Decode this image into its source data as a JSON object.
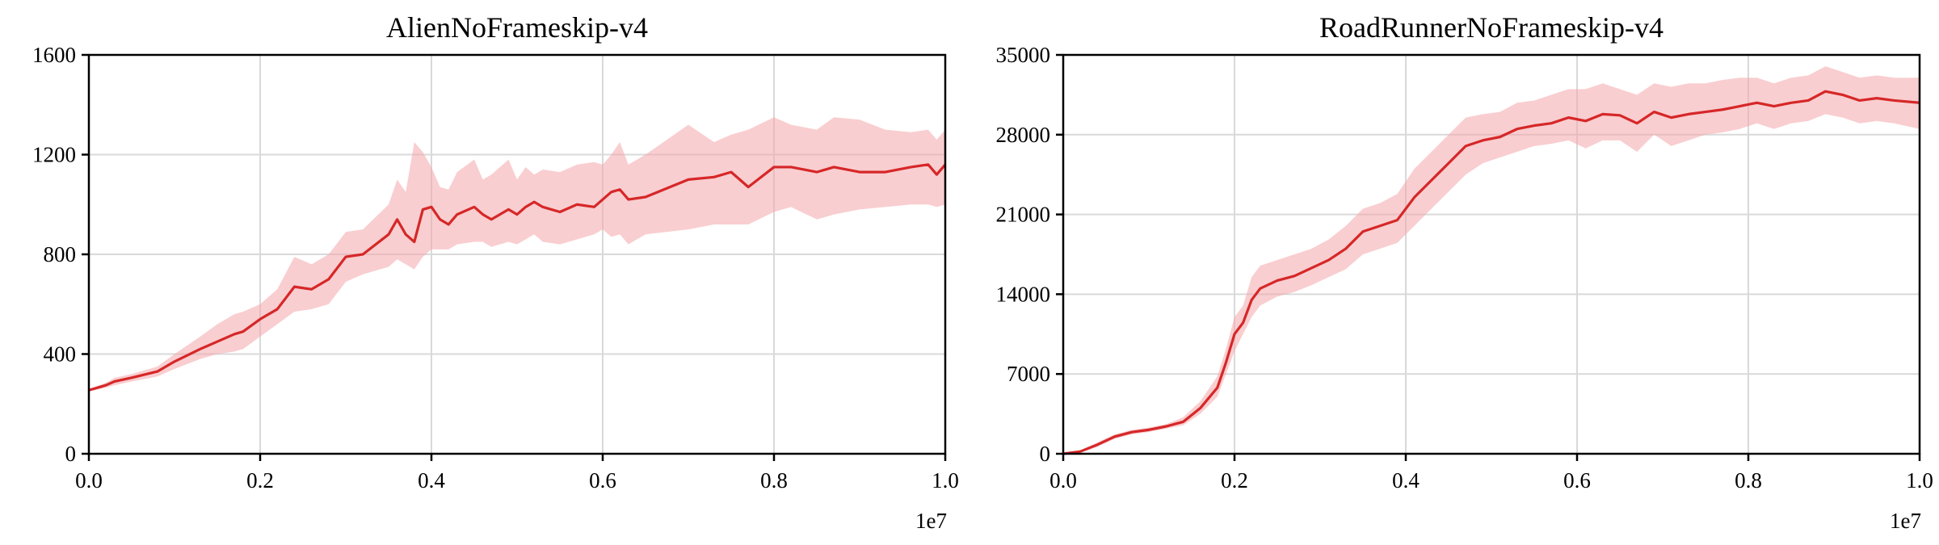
{
  "colors": {
    "line": "#d62728",
    "band": "#f4a6a9"
  },
  "chart_data": [
    {
      "type": "line",
      "title": "AlienNoFrameskip-v4",
      "xlabel": "",
      "ylabel": "",
      "x_offset_label": "1e7",
      "xlim": [
        0,
        10000000
      ],
      "ylim": [
        0,
        1600
      ],
      "xticks": [
        0,
        2000000,
        4000000,
        6000000,
        8000000,
        10000000
      ],
      "xtick_labels": [
        "0.0",
        "0.2",
        "0.4",
        "0.6",
        "0.8",
        "1.0"
      ],
      "yticks": [
        0,
        400,
        800,
        1200,
        1600
      ],
      "ytick_labels": [
        "0",
        "400",
        "800",
        "1200",
        "1600"
      ],
      "grid": true,
      "series": [
        {
          "x": [
            0,
            200000,
            300000,
            500000,
            800000,
            1000000,
            1300000,
            1500000,
            1700000,
            1800000,
            2000000,
            2200000,
            2400000,
            2600000,
            2800000,
            3000000,
            3200000,
            3500000,
            3600000,
            3700000,
            3800000,
            3900000,
            4000000,
            4100000,
            4200000,
            4300000,
            4500000,
            4600000,
            4700000,
            4900000,
            5000000,
            5100000,
            5200000,
            5300000,
            5500000,
            5700000,
            5900000,
            6000000,
            6100000,
            6200000,
            6300000,
            6500000,
            7000000,
            7300000,
            7500000,
            7700000,
            8000000,
            8200000,
            8500000,
            8700000,
            9000000,
            9300000,
            9600000,
            9800000,
            9900000,
            10000000
          ],
          "y": [
            255,
            275,
            290,
            305,
            330,
            370,
            420,
            450,
            480,
            490,
            540,
            580,
            670,
            660,
            700,
            790,
            800,
            880,
            940,
            880,
            850,
            980,
            990,
            940,
            920,
            960,
            990,
            960,
            940,
            980,
            960,
            990,
            1010,
            990,
            970,
            1000,
            990,
            1020,
            1050,
            1060,
            1020,
            1030,
            1100,
            1110,
            1130,
            1070,
            1150,
            1150,
            1130,
            1150,
            1130,
            1130,
            1150,
            1160,
            1120,
            1160
          ],
          "lower": [
            250,
            265,
            275,
            290,
            310,
            340,
            380,
            400,
            410,
            420,
            470,
            520,
            570,
            580,
            600,
            690,
            720,
            750,
            780,
            760,
            740,
            790,
            820,
            820,
            820,
            840,
            850,
            850,
            830,
            850,
            840,
            860,
            880,
            850,
            840,
            860,
            880,
            900,
            870,
            880,
            840,
            880,
            900,
            920,
            920,
            920,
            970,
            990,
            940,
            960,
            980,
            990,
            1000,
            1000,
            990,
            1000
          ],
          "upper": [
            260,
            285,
            305,
            320,
            350,
            400,
            470,
            520,
            560,
            570,
            600,
            660,
            790,
            760,
            800,
            890,
            900,
            1000,
            1100,
            1050,
            1250,
            1210,
            1150,
            1070,
            1060,
            1130,
            1180,
            1100,
            1120,
            1180,
            1100,
            1150,
            1120,
            1140,
            1130,
            1160,
            1170,
            1160,
            1200,
            1250,
            1160,
            1200,
            1320,
            1250,
            1280,
            1300,
            1350,
            1320,
            1300,
            1350,
            1340,
            1300,
            1290,
            1300,
            1260,
            1300
          ]
        }
      ]
    },
    {
      "type": "line",
      "title": "RoadRunnerNoFrameskip-v4",
      "xlabel": "",
      "ylabel": "",
      "x_offset_label": "1e7",
      "xlim": [
        0,
        10000000
      ],
      "ylim": [
        0,
        35000
      ],
      "xticks": [
        0,
        2000000,
        4000000,
        6000000,
        8000000,
        10000000
      ],
      "xtick_labels": [
        "0.0",
        "0.2",
        "0.4",
        "0.6",
        "0.8",
        "1.0"
      ],
      "yticks": [
        0,
        7000,
        14000,
        21000,
        28000,
        35000
      ],
      "ytick_labels": [
        "0",
        "7000",
        "14000",
        "21000",
        "28000",
        "35000"
      ],
      "grid": true,
      "series": [
        {
          "x": [
            0,
            200000,
            400000,
            600000,
            800000,
            1000000,
            1200000,
            1400000,
            1600000,
            1800000,
            1900000,
            2000000,
            2100000,
            2200000,
            2300000,
            2500000,
            2700000,
            2900000,
            3100000,
            3300000,
            3500000,
            3700000,
            3900000,
            4100000,
            4300000,
            4500000,
            4700000,
            4900000,
            5100000,
            5300000,
            5500000,
            5700000,
            5900000,
            6100000,
            6300000,
            6500000,
            6700000,
            6900000,
            7100000,
            7300000,
            7500000,
            7700000,
            7900000,
            8100000,
            8300000,
            8500000,
            8700000,
            8900000,
            9100000,
            9300000,
            9500000,
            9700000,
            10000000
          ],
          "y": [
            0,
            200,
            800,
            1500,
            1900,
            2100,
            2400,
            2800,
            4000,
            5800,
            8000,
            10500,
            11500,
            13500,
            14500,
            15200,
            15600,
            16300,
            17000,
            18000,
            19500,
            20000,
            20500,
            22500,
            24000,
            25500,
            27000,
            27500,
            27800,
            28500,
            28800,
            29000,
            29500,
            29200,
            29800,
            29700,
            29000,
            30000,
            29500,
            29800,
            30000,
            30200,
            30500,
            30800,
            30500,
            30800,
            31000,
            31800,
            31500,
            31000,
            31200,
            31000,
            30800
          ],
          "lower": [
            0,
            100,
            600,
            1300,
            1700,
            1900,
            2200,
            2500,
            3500,
            5000,
            7000,
            9000,
            10500,
            12000,
            13000,
            13800,
            14200,
            14800,
            15500,
            16200,
            17500,
            18000,
            18500,
            20000,
            21500,
            23000,
            24500,
            25500,
            26000,
            26500,
            27000,
            27200,
            27500,
            26800,
            27500,
            27500,
            26500,
            28000,
            27000,
            27500,
            28000,
            28200,
            28500,
            29000,
            28500,
            29000,
            29200,
            29800,
            29500,
            29000,
            29200,
            29000,
            28500
          ],
          "upper": [
            0,
            300,
            1000,
            1700,
            2100,
            2300,
            2600,
            3200,
            4600,
            6800,
            9200,
            12000,
            13000,
            15500,
            16500,
            17000,
            17500,
            18000,
            18800,
            20000,
            21500,
            22000,
            22800,
            25000,
            26500,
            28000,
            29500,
            29800,
            30000,
            30800,
            31000,
            31500,
            32000,
            32000,
            32500,
            32000,
            31500,
            32500,
            32200,
            32500,
            32500,
            32800,
            33000,
            33000,
            32500,
            33000,
            33200,
            34000,
            33500,
            33000,
            33200,
            33000,
            33000
          ]
        }
      ]
    }
  ]
}
